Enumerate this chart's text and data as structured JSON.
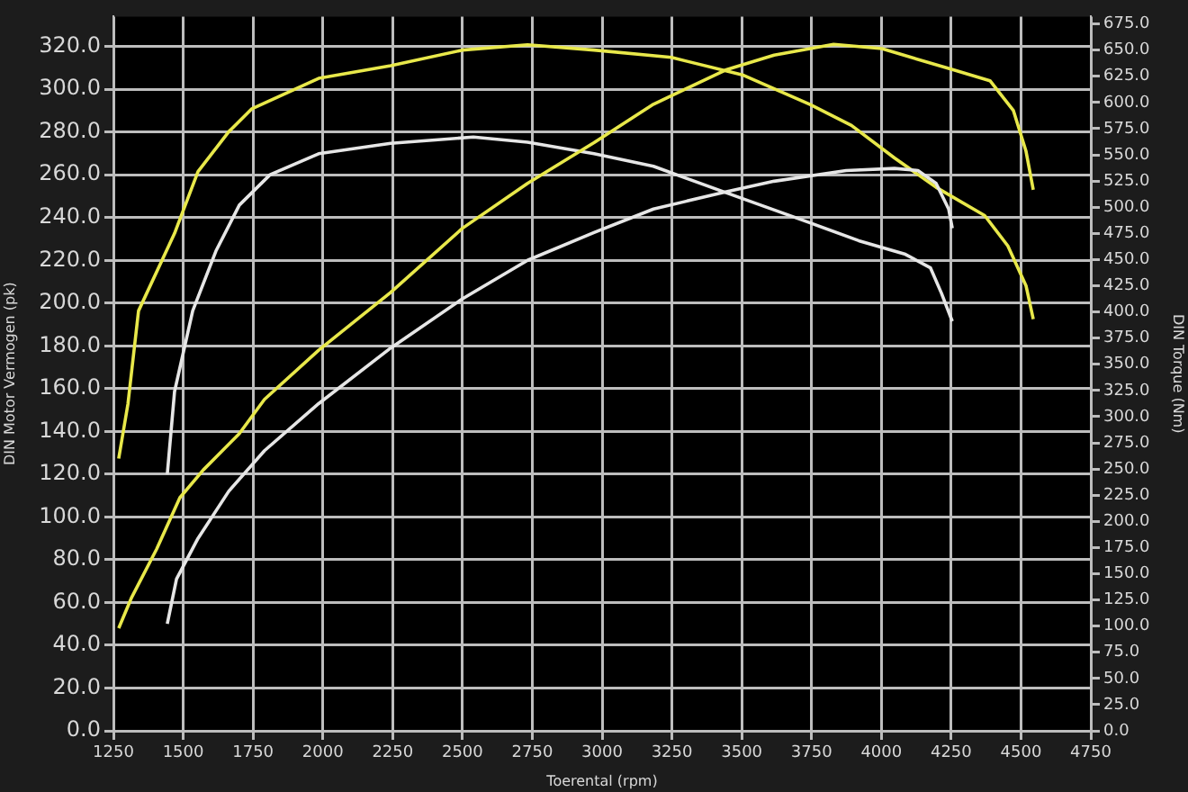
{
  "chart_data": {
    "type": "line",
    "xlabel": "Toerental (rpm)",
    "ylabel": "DIN Motor Vermogen (pk)",
    "y2label": "DIN Torque (Nm)",
    "xlim": [
      1250,
      4750
    ],
    "xticks": [
      1250,
      1500,
      1750,
      2000,
      2250,
      2500,
      2750,
      3000,
      3250,
      3500,
      3750,
      4000,
      4250,
      4500,
      4750
    ],
    "ylim": [
      0,
      334
    ],
    "yticks": [
      {
        "value": 0,
        "label": "0.0"
      },
      {
        "value": 20,
        "label": "20.0"
      },
      {
        "value": 40,
        "label": "40.0"
      },
      {
        "value": 60,
        "label": "60.0"
      },
      {
        "value": 80,
        "label": "80.0"
      },
      {
        "value": 100,
        "label": "100.0"
      },
      {
        "value": 120,
        "label": "120.0"
      },
      {
        "value": 140,
        "label": "140.0"
      },
      {
        "value": 160,
        "label": "160.0"
      },
      {
        "value": 180,
        "label": "180.0"
      },
      {
        "value": 200,
        "label": "200.0"
      },
      {
        "value": 220,
        "label": "220.0"
      },
      {
        "value": 240,
        "label": "240.0"
      },
      {
        "value": 260,
        "label": "260.0"
      },
      {
        "value": 280,
        "label": "280.0"
      },
      {
        "value": 300,
        "label": "300.0"
      },
      {
        "value": 320,
        "label": "320.0"
      }
    ],
    "y2lim": [
      0,
      682
    ],
    "y2ticks": [
      {
        "value": 0,
        "label": "0.0"
      },
      {
        "value": 25,
        "label": "25.0"
      },
      {
        "value": 50,
        "label": "50.0"
      },
      {
        "value": 75,
        "label": "75.0"
      },
      {
        "value": 100,
        "label": "100.0"
      },
      {
        "value": 125,
        "label": "125.0"
      },
      {
        "value": 150,
        "label": "150.0"
      },
      {
        "value": 175,
        "label": "175.0"
      },
      {
        "value": 200,
        "label": "200.0"
      },
      {
        "value": 225,
        "label": "225.0"
      },
      {
        "value": 250,
        "label": "250.0"
      },
      {
        "value": 275,
        "label": "275.0"
      },
      {
        "value": 300,
        "label": "300.0"
      },
      {
        "value": 325,
        "label": "325.0"
      },
      {
        "value": 350,
        "label": "350.0"
      },
      {
        "value": 375,
        "label": "375.0"
      },
      {
        "value": 400,
        "label": "400.0"
      },
      {
        "value": 425,
        "label": "425.0"
      },
      {
        "value": 450,
        "label": "450.0"
      },
      {
        "value": 475,
        "label": "475.0"
      },
      {
        "value": 500,
        "label": "500.0"
      },
      {
        "value": 525,
        "label": "525.0"
      },
      {
        "value": 550,
        "label": "550.0"
      },
      {
        "value": 575,
        "label": "575.0"
      },
      {
        "value": 600,
        "label": "600.0"
      },
      {
        "value": 625,
        "label": "625.0"
      },
      {
        "value": 650,
        "label": "650.0"
      },
      {
        "value": 675,
        "label": "675.0"
      }
    ],
    "grid": true,
    "legend": false,
    "marker": "none",
    "line_style": "solid",
    "series": [
      {
        "color": "#e8e84a",
        "x": [
          1269,
          1314,
          1405,
          1488,
          1572,
          1701,
          1791,
          1985,
          2243,
          2500,
          2733,
          2971,
          3184,
          3442,
          3616,
          3829,
          4002,
          4260,
          4389,
          4473,
          4518,
          4544
        ],
        "values": [
          48,
          62,
          85,
          109,
          122,
          139,
          155,
          178,
          205,
          235,
          256,
          275,
          293,
          309,
          316,
          321,
          319,
          309,
          304,
          290,
          271,
          253
        ]
      },
      {
        "color": "#e6e6e6",
        "x": [
          1443,
          1476,
          1553,
          1663,
          1791,
          1985,
          2243,
          2500,
          2733,
          2971,
          3184,
          3442,
          3616,
          3874,
          4047,
          4131,
          4196,
          4241,
          4254
        ],
        "values": [
          50,
          71,
          90,
          112,
          131,
          153,
          179,
          202,
          220,
          233,
          244,
          252,
          257,
          262,
          263,
          262,
          256,
          244,
          235
        ]
      },
      {
        "color": "#e8e84a",
        "axis": "y2",
        "x": [
          1269,
          1302,
          1340,
          1469,
          1553,
          1663,
          1746,
          1985,
          2243,
          2500,
          2733,
          2971,
          3248,
          3506,
          3745,
          3893,
          4047,
          4196,
          4370,
          4453,
          4518,
          4544
        ],
        "values": [
          260,
          312,
          401,
          475,
          534,
          572,
          594,
          623,
          635,
          650,
          655,
          650,
          643,
          626,
          598,
          578,
          547,
          519,
          492,
          463,
          425,
          393
        ]
      },
      {
        "color": "#e6e6e6",
        "axis": "y2",
        "x": [
          1443,
          1469,
          1534,
          1617,
          1701,
          1811,
          1985,
          2243,
          2539,
          2733,
          2971,
          3184,
          3442,
          3745,
          3919,
          4086,
          4176,
          4215,
          4254
        ],
        "values": [
          245,
          324,
          401,
          458,
          502,
          531,
          551,
          561,
          567,
          562,
          551,
          539,
          514,
          485,
          468,
          455,
          442,
          418,
          391
        ]
      }
    ]
  }
}
